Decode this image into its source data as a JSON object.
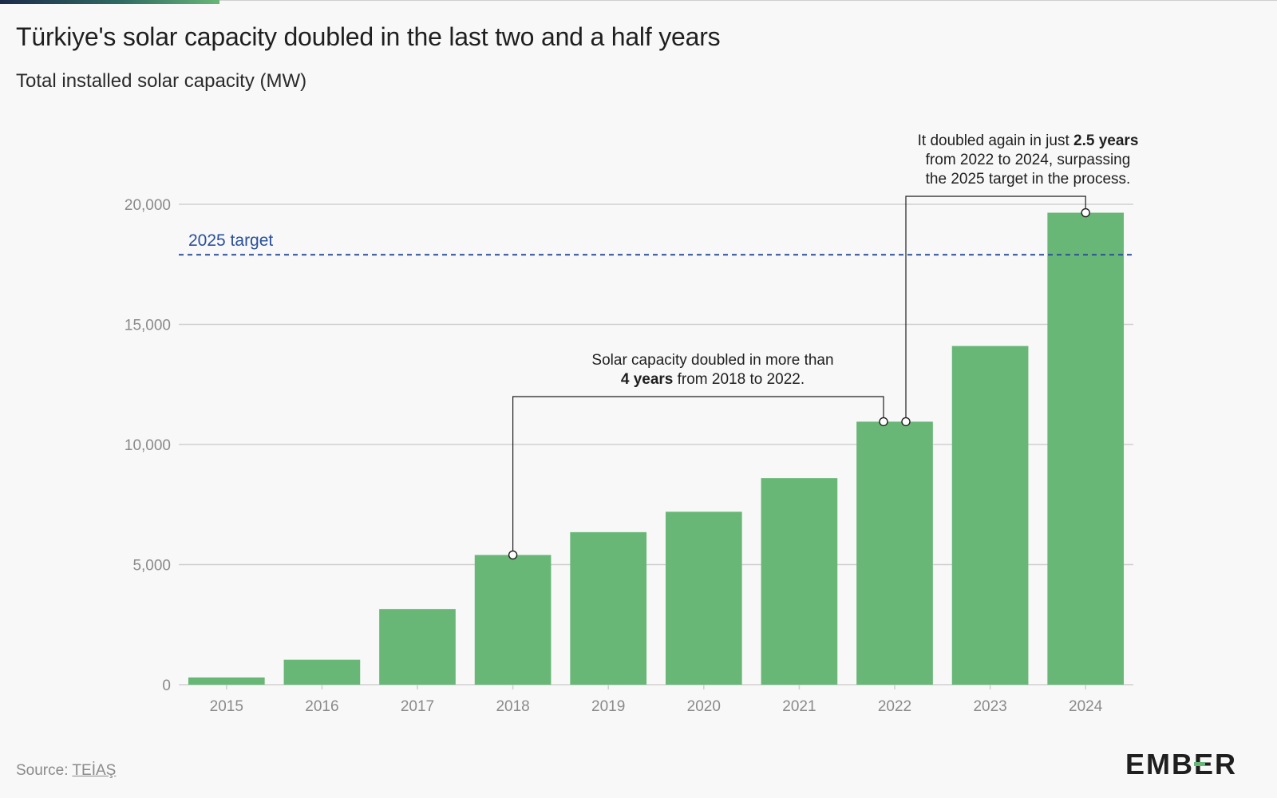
{
  "title": "Türkiye's solar capacity doubled in the last two and a half years",
  "subtitle": "Total installed solar capacity (MW)",
  "chart_data": {
    "type": "bar",
    "categories": [
      "2015",
      "2016",
      "2017",
      "2018",
      "2019",
      "2020",
      "2021",
      "2022",
      "2023",
      "2024"
    ],
    "values": [
      300,
      1040,
      3150,
      5400,
      6350,
      7200,
      8600,
      10950,
      14100,
      19650
    ],
    "ylim": [
      0,
      20000
    ],
    "yticks": [
      0,
      5000,
      10000,
      15000,
      20000
    ],
    "ytick_labels": [
      "0",
      "5,000",
      "10,000",
      "15,000",
      "20,000"
    ],
    "grid": true,
    "bar_color": "#68b777",
    "target": {
      "label": "2025 target",
      "value": 17900,
      "color": "#2a4f9a"
    },
    "annotations": [
      {
        "line1": "Solar capacity doubled in more than",
        "bold": "4 years",
        "rest": " from 2018 to 2022.",
        "from": "2018",
        "to": "2022"
      },
      {
        "line1_prefix": "It doubled again in just ",
        "bold": "2.5 years",
        "line2": "from 2022 to 2024, surpassing",
        "line3": "the 2025 target in the process.",
        "from": "2022",
        "to": "2024"
      }
    ]
  },
  "source": {
    "label": "Source: ",
    "link": "TEİAŞ"
  },
  "logo": {
    "pre": "EMB",
    "e": "E",
    "post": "R"
  }
}
